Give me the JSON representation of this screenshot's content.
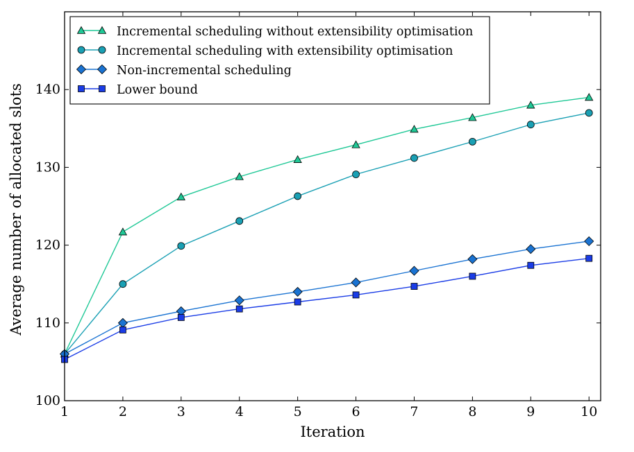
{
  "chart_data": {
    "type": "line",
    "title": "",
    "xlabel": "Iteration",
    "ylabel": "Average number of allocated slots",
    "x": [
      1,
      2,
      3,
      4,
      5,
      6,
      7,
      8,
      9,
      10
    ],
    "xlim": [
      1,
      10.2
    ],
    "ylim": [
      100,
      150
    ],
    "xticks": [
      1,
      2,
      3,
      4,
      5,
      6,
      7,
      8,
      9,
      10
    ],
    "yticks": [
      100,
      110,
      120,
      130,
      140
    ],
    "grid": false,
    "legend_position": "top-left",
    "series": [
      {
        "name": "Incremental scheduling without extensibility optimisation",
        "marker": "triangle",
        "color": "#1fc896",
        "values": [
          106,
          121.7,
          126.2,
          128.8,
          131,
          132.9,
          134.9,
          136.4,
          138,
          139
        ]
      },
      {
        "name": "Incremental scheduling with extensibility optimisation",
        "marker": "circle",
        "color": "#1aa0b4",
        "values": [
          106,
          115,
          119.9,
          123.1,
          126.3,
          129.1,
          131.2,
          133.3,
          135.5,
          137
        ]
      },
      {
        "name": "Non-incremental scheduling",
        "marker": "diamond",
        "color": "#1a73d2",
        "values": [
          106,
          110,
          111.5,
          112.9,
          114,
          115.2,
          116.7,
          118.2,
          119.5,
          120.5
        ]
      },
      {
        "name": "Lower bound",
        "marker": "square",
        "color": "#1a3ce6",
        "values": [
          105.3,
          109.1,
          110.7,
          111.8,
          112.7,
          113.6,
          114.7,
          116,
          117.4,
          118.3
        ]
      }
    ]
  }
}
